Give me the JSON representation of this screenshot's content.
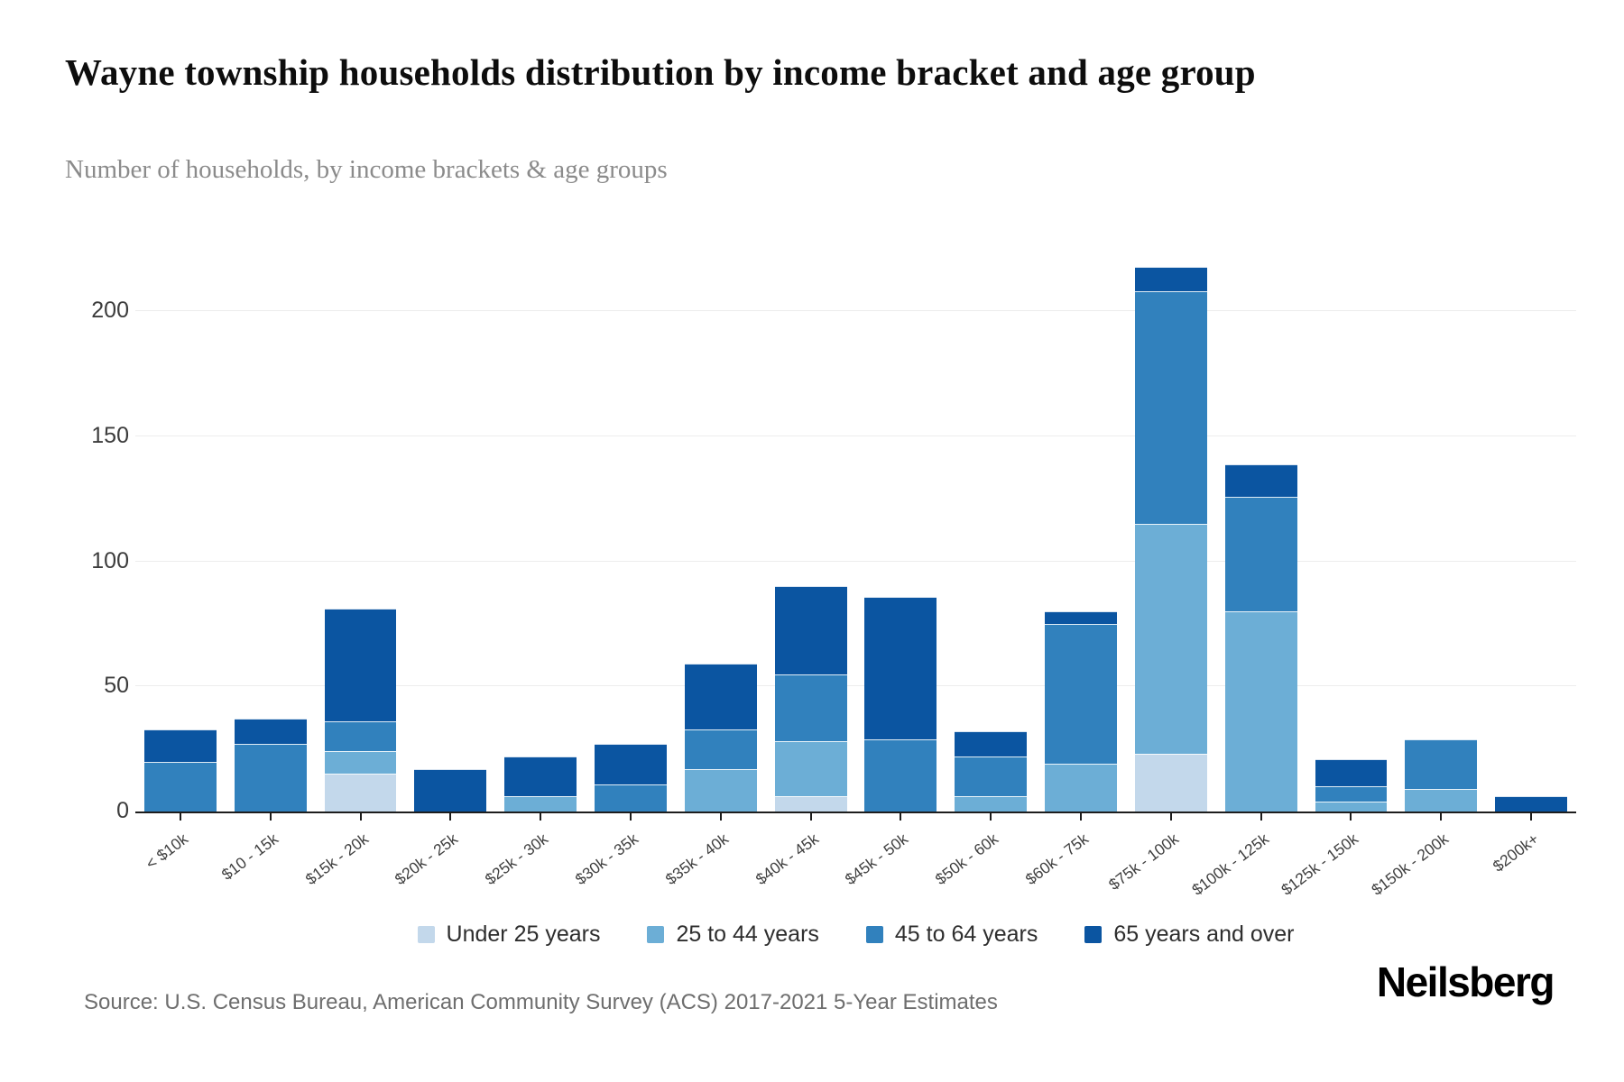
{
  "header": {
    "title": "Wayne township households distribution by income bracket and age group",
    "subtitle": "Number of households, by income brackets & age groups"
  },
  "footer": {
    "source": "Source: U.S. Census Bureau, American Community Survey (ACS) 2017-2021 5-Year Estimates",
    "brand": "Neilsberg"
  },
  "chart_data": {
    "type": "bar",
    "stacked": true,
    "title": "Wayne township households distribution by income bracket and age group",
    "subtitle": "Number of households, by income brackets & age groups",
    "xlabel": "",
    "ylabel": "",
    "ylim": [
      0,
      220
    ],
    "y_ticks": [
      0,
      50,
      100,
      150,
      200
    ],
    "grid": true,
    "legend_position": "bottom",
    "categories": [
      "< $10k",
      "$10 - 15k",
      "$15k - 20k",
      "$20k - 25k",
      "$25k - 30k",
      "$30k - 35k",
      "$35k - 40k",
      "$40k - 45k",
      "$45k - 50k",
      "$50k - 60k",
      "$60k - 75k",
      "$75k - 100k",
      "$100k - 125k",
      "$125k - 150k",
      "$150k - 200k",
      "$200k+"
    ],
    "series": [
      {
        "name": "Under 25 years",
        "color": "#c3d8eb",
        "values": [
          0,
          0,
          15,
          0,
          0,
          0,
          0,
          6,
          0,
          0,
          0,
          23,
          0,
          0,
          0,
          0
        ]
      },
      {
        "name": "25 to 44 years",
        "color": "#6caed6",
        "values": [
          0,
          0,
          9,
          0,
          6,
          0,
          17,
          22,
          0,
          6,
          19,
          92,
          80,
          4,
          9,
          0
        ]
      },
      {
        "name": "45 to 64 years",
        "color": "#3181bd",
        "values": [
          20,
          27,
          12,
          0,
          0,
          11,
          16,
          27,
          29,
          16,
          56,
          93,
          46,
          6,
          20,
          0
        ]
      },
      {
        "name": "65 years and over",
        "color": "#0b55a1",
        "values": [
          13,
          10,
          45,
          17,
          16,
          16,
          26,
          35,
          57,
          10,
          5,
          10,
          13,
          11,
          0,
          6
        ]
      }
    ],
    "totals": [
      33,
      37,
      81,
      17,
      22,
      27,
      59,
      90,
      86,
      32,
      80,
      218,
      139,
      21,
      29,
      6
    ]
  }
}
